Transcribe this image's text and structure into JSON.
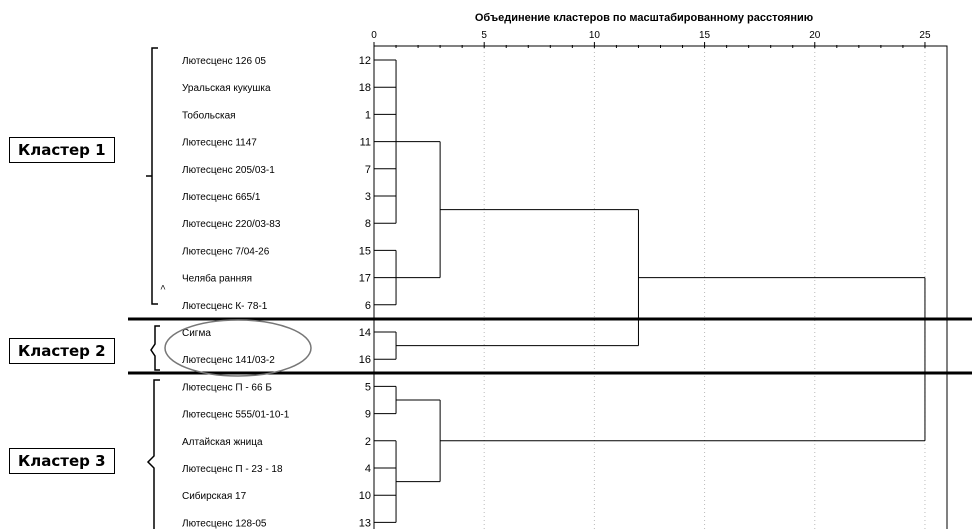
{
  "chart_data": {
    "type": "dendrogram",
    "title": "Объединение кластеров по масштабированному расстоянию",
    "axis_ticks": [
      "0",
      "5",
      "10",
      "15",
      "20",
      "25"
    ],
    "xlim": [
      0,
      26
    ],
    "leaves": [
      {
        "label": "Лютесценс 126 05",
        "id": "12"
      },
      {
        "label": "Уральская кукушка",
        "id": "18"
      },
      {
        "label": "Тобольская",
        "id": "1"
      },
      {
        "label": "Лютесценс 1147",
        "id": "11"
      },
      {
        "label": "Лютесценс 205/03-1",
        "id": "7"
      },
      {
        "label": "Лютесценс 665/1",
        "id": "3"
      },
      {
        "label": "Лютесценс 220/03-83",
        "id": "8"
      },
      {
        "label": "Лютесценс 7/04-26",
        "id": "15"
      },
      {
        "label": "Челяба ранняя",
        "id": "17"
      },
      {
        "label": "Лютесценс К- 78-1",
        "id": "6"
      },
      {
        "label": "Сигма",
        "id": "14"
      },
      {
        "label": "Лютесценс 141/03-2",
        "id": "16"
      },
      {
        "label": "Лютесценс П - 66 Б",
        "id": "5"
      },
      {
        "label": "Лютесценс 555/01-10-1",
        "id": "9"
      },
      {
        "label": "Алтайская жница",
        "id": "2"
      },
      {
        "label": "Лютесценс П - 23 - 18",
        "id": "4"
      },
      {
        "label": "Сибирская 17",
        "id": "10"
      },
      {
        "label": "Лютесценс 128-05",
        "id": "13"
      }
    ],
    "merges": [
      {
        "children": [
          0,
          1,
          2,
          3,
          4,
          5,
          6
        ],
        "distance": 1
      },
      {
        "children": [
          7,
          8,
          9
        ],
        "distance": 1
      },
      {
        "children": [
          10,
          11
        ],
        "distance": 1
      },
      {
        "children": [
          12,
          13
        ],
        "distance": 1
      },
      {
        "children": [
          14,
          15,
          16,
          17
        ],
        "distance": 1
      },
      {
        "children": [
          "m0",
          "m1"
        ],
        "distance": 3
      },
      {
        "children": [
          "m3",
          "m4"
        ],
        "distance": 3
      },
      {
        "children": [
          "m5",
          "m2"
        ],
        "distance": 12
      },
      {
        "children": [
          "m7",
          "m6"
        ],
        "distance": 25
      }
    ]
  },
  "clusters": [
    {
      "label": "Кластер 1"
    },
    {
      "label": "Кластер 2"
    },
    {
      "label": "Кластер 3"
    }
  ]
}
